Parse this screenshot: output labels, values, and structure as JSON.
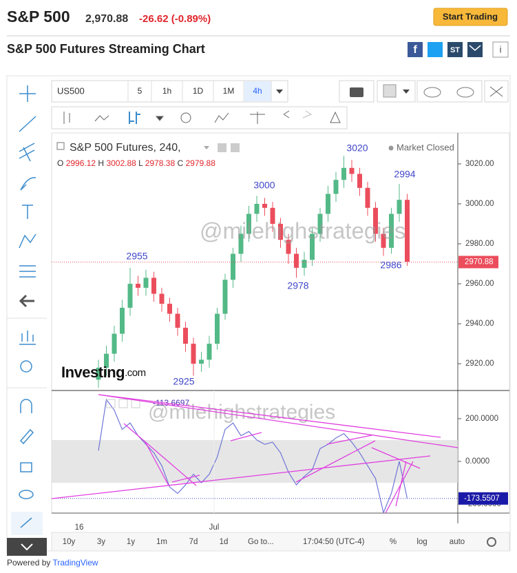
{
  "header": {
    "title": "S&P 500",
    "price": "2,970.88",
    "change": "-26.62 (-0.89%)",
    "button": "Start Trading",
    "subtitle": "S&P 500 Futures Streaming Chart",
    "stocktwits": "ST"
  },
  "toolbar": {
    "symbol": "US500",
    "intervals": [
      "5",
      "1h",
      "1D",
      "1M",
      "4h"
    ]
  },
  "chart_data": {
    "type": "candlestick",
    "title": "S&P 500 Futures, 240,",
    "status": "Market Closed",
    "ohlc_labels": [
      "O",
      "H",
      "L",
      "C"
    ],
    "ohlc_values": [
      2996.12,
      3002.88,
      2978.38,
      2979.88
    ],
    "up_color": "#53b987",
    "down_color": "#eb4d5c",
    "ylim": [
      2906.6,
      3035.5
    ],
    "yticks": [
      {
        "value": 2920,
        "label": "2920.00"
      },
      {
        "value": 2940,
        "label": "2940.00"
      },
      {
        "value": 2960,
        "label": "2960.00"
      },
      {
        "value": 2980,
        "label": "2980.00"
      },
      {
        "value": 3000,
        "label": "3000.00"
      },
      {
        "value": 3020,
        "label": "3020.00"
      }
    ],
    "last_price": 2970.88,
    "annotations": [
      2955,
      2925,
      3000,
      2978,
      3020,
      2986,
      2994
    ],
    "watermark": "@milehighstrategies",
    "brand": "Investing",
    "brand_suffix": ".com",
    "candles": [
      {
        "o": 2912,
        "h": 2922,
        "l": 2908,
        "c": 2918
      },
      {
        "o": 2918,
        "h": 2929,
        "l": 2914,
        "c": 2925
      },
      {
        "o": 2925,
        "h": 2939,
        "l": 2921,
        "c": 2935
      },
      {
        "o": 2935,
        "h": 2952,
        "l": 2931,
        "c": 2948
      },
      {
        "o": 2948,
        "h": 2968,
        "l": 2944,
        "c": 2960
      },
      {
        "o": 2960,
        "h": 2964,
        "l": 2954,
        "c": 2958
      },
      {
        "o": 2958,
        "h": 2967,
        "l": 2954,
        "c": 2963
      },
      {
        "o": 2963,
        "h": 2966,
        "l": 2951,
        "c": 2955
      },
      {
        "o": 2955,
        "h": 2958,
        "l": 2946,
        "c": 2950
      },
      {
        "o": 2950,
        "h": 2953,
        "l": 2941,
        "c": 2945
      },
      {
        "o": 2945,
        "h": 2948,
        "l": 2934,
        "c": 2938
      },
      {
        "o": 2938,
        "h": 2941,
        "l": 2926,
        "c": 2930
      },
      {
        "o": 2930,
        "h": 2933,
        "l": 2914,
        "c": 2920
      },
      {
        "o": 2920,
        "h": 2926,
        "l": 2916,
        "c": 2922
      },
      {
        "o": 2922,
        "h": 2934,
        "l": 2918,
        "c": 2930
      },
      {
        "o": 2930,
        "h": 2948,
        "l": 2927,
        "c": 2945
      },
      {
        "o": 2945,
        "h": 2965,
        "l": 2942,
        "c": 2962
      },
      {
        "o": 2962,
        "h": 2978,
        "l": 2958,
        "c": 2975
      },
      {
        "o": 2975,
        "h": 2989,
        "l": 2971,
        "c": 2985
      },
      {
        "o": 2985,
        "h": 2999,
        "l": 2981,
        "c": 2995
      },
      {
        "o": 2995,
        "h": 3004,
        "l": 2991,
        "c": 3000
      },
      {
        "o": 3000,
        "h": 3003,
        "l": 2994,
        "c": 2998
      },
      {
        "o": 2998,
        "h": 3001,
        "l": 2986,
        "c": 2990
      },
      {
        "o": 2990,
        "h": 2993,
        "l": 2978,
        "c": 2982
      },
      {
        "o": 2982,
        "h": 2985,
        "l": 2970,
        "c": 2975
      },
      {
        "o": 2975,
        "h": 2978,
        "l": 2963,
        "c": 2968
      },
      {
        "o": 2968,
        "h": 2976,
        "l": 2964,
        "c": 2972
      },
      {
        "o": 2972,
        "h": 2988,
        "l": 2969,
        "c": 2985
      },
      {
        "o": 2985,
        "h": 2998,
        "l": 2981,
        "c": 2995
      },
      {
        "o": 2995,
        "h": 3009,
        "l": 2991,
        "c": 3005
      },
      {
        "o": 3005,
        "h": 3016,
        "l": 3001,
        "c": 3012
      },
      {
        "o": 3012,
        "h": 3024,
        "l": 3008,
        "c": 3018
      },
      {
        "o": 3018,
        "h": 3022,
        "l": 3011,
        "c": 3015
      },
      {
        "o": 3015,
        "h": 3018,
        "l": 3004,
        "c": 3008
      },
      {
        "o": 3008,
        "h": 3011,
        "l": 2994,
        "c": 2998
      },
      {
        "o": 2998,
        "h": 3001,
        "l": 2981,
        "c": 2985
      },
      {
        "o": 2985,
        "h": 2988,
        "l": 2974,
        "c": 2978
      },
      {
        "o": 2978,
        "h": 2998,
        "l": 2975,
        "c": 2995
      },
      {
        "o": 2995,
        "h": 3010,
        "l": 2991,
        "c": 3002
      },
      {
        "o": 3002,
        "h": 3005,
        "l": 2969,
        "c": 2971
      }
    ],
    "indicator": {
      "type": "line",
      "color": "#6f75d8",
      "ylim": [
        -242,
        332
      ],
      "yticks": [
        {
          "value": 200,
          "label": "200.0000"
        },
        {
          "value": 0,
          "label": "0.0000"
        },
        {
          "value": -200,
          "label": "-200.0000"
        }
      ],
      "band": [
        -100,
        100
      ],
      "legend_value": -113.6697,
      "last_value": -173.5507,
      "watermark": "@milehighstrategies",
      "values": [
        50,
        290,
        240,
        150,
        180,
        120,
        80,
        40,
        -20,
        -120,
        -150,
        -110,
        -60,
        -100,
        -60,
        20,
        150,
        180,
        120,
        140,
        100,
        80,
        90,
        40,
        -50,
        -110,
        -70,
        -40,
        60,
        80,
        110,
        130,
        90,
        40,
        -20,
        -80,
        -240,
        -150,
        0,
        -173.5507
      ]
    }
  },
  "x_labels": [
    "16",
    "Jul"
  ],
  "bottom_bar": {
    "ranges": [
      "10y",
      "3y",
      "1y",
      "1m",
      "7d",
      "1d"
    ],
    "goto": "Go to...",
    "time": "17:04:50 (UTC-4)",
    "options": [
      "%",
      "log",
      "auto"
    ]
  },
  "footer": {
    "prefix": "Powered by",
    "brand": "TradingView"
  }
}
